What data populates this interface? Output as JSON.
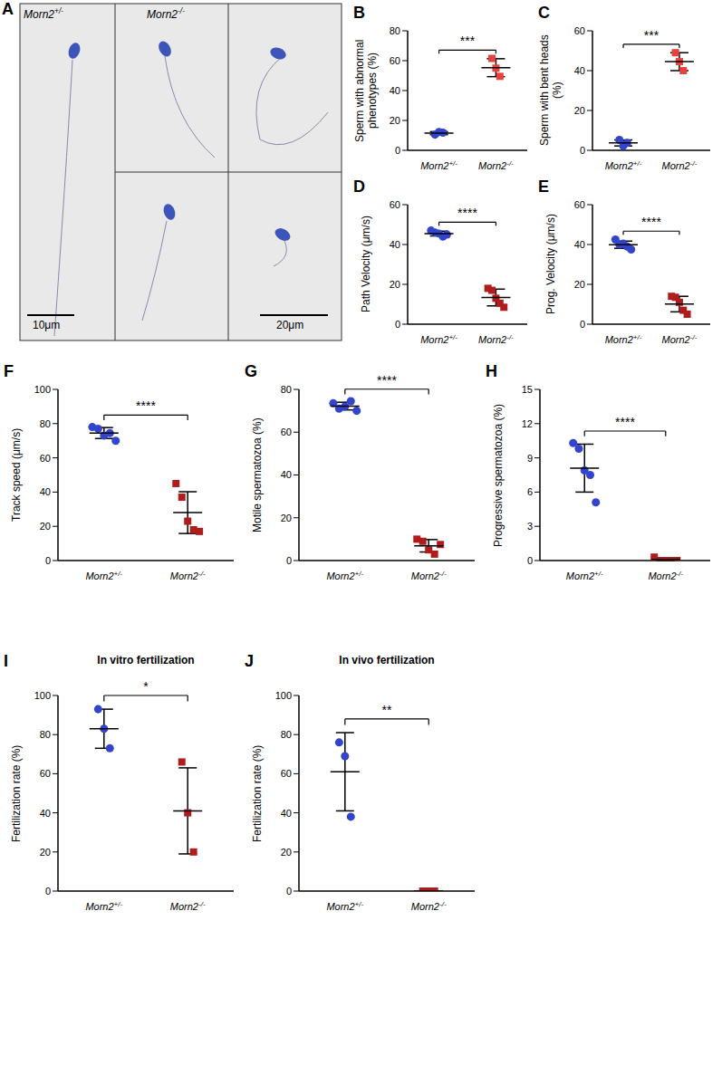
{
  "image_panel": {
    "panel": "A",
    "labels": [
      "Morn2+/-",
      "Morn2-/-"
    ],
    "scale_bars": [
      "10μm",
      "20μm"
    ]
  },
  "chart_data": [
    {
      "type": "scatter",
      "panel": "B",
      "y_label": "Sperm with abnormal phenotypes (%)",
      "categories": [
        "Morn2+/-",
        "Morn2-/-"
      ],
      "groups": [
        {
          "category": "Morn2+/-",
          "color": "#3344cc",
          "marker": "circle",
          "values": [
            10.5,
            12.3,
            11.8
          ],
          "mean": 11.5,
          "sd": 1.0
        },
        {
          "category": "Morn2-/-",
          "color": "#e8413c",
          "marker": "square",
          "values": [
            61.5,
            55,
            49.5
          ],
          "mean": 55.3,
          "sd": 6.0
        }
      ],
      "ylim": [
        0,
        80
      ],
      "yticks": [
        0,
        20,
        40,
        60,
        80
      ],
      "significance": "***",
      "grid": false
    },
    {
      "type": "scatter",
      "panel": "C",
      "y_label": "Sperm with bent heads (%)",
      "categories": [
        "Morn2+/-",
        "Morn2-/-"
      ],
      "groups": [
        {
          "category": "Morn2+/-",
          "color": "#3344cc",
          "marker": "circle",
          "values": [
            5.2,
            2.2,
            3.8
          ],
          "mean": 3.7,
          "sd": 1.5
        },
        {
          "category": "Morn2-/-",
          "color": "#e8413c",
          "marker": "square",
          "values": [
            49,
            44.5,
            40
          ],
          "mean": 44.5,
          "sd": 4.5
        }
      ],
      "ylim": [
        0,
        60
      ],
      "yticks": [
        0,
        20,
        40,
        60
      ],
      "significance": "***",
      "grid": false
    },
    {
      "type": "scatter",
      "panel": "D",
      "y_label": "Path Velocity (μm/s)",
      "categories": [
        "Morn2+/-",
        "Morn2-/-"
      ],
      "groups": [
        {
          "category": "Morn2+/-",
          "color": "#3344cc",
          "marker": "circle",
          "values": [
            47,
            46,
            45.5,
            44,
            45
          ],
          "mean": 45.5,
          "sd": 1.2
        },
        {
          "category": "Morn2-/-",
          "color": "#b01c1c",
          "marker": "square",
          "values": [
            18,
            17,
            13,
            10.5,
            8.5
          ],
          "mean": 13.4,
          "sd": 4.2
        }
      ],
      "ylim": [
        0,
        60
      ],
      "yticks": [
        0,
        20,
        40,
        60
      ],
      "significance": "****",
      "grid": false
    },
    {
      "type": "scatter",
      "panel": "E",
      "y_label": "Prog. Velocity (μm/s)",
      "categories": [
        "Morn2+/-",
        "Morn2-/-"
      ],
      "groups": [
        {
          "category": "Morn2+/-",
          "color": "#3344cc",
          "marker": "circle",
          "values": [
            42.5,
            40,
            40.5,
            39,
            37.5
          ],
          "mean": 39.9,
          "sd": 1.8
        },
        {
          "category": "Morn2-/-",
          "color": "#b01c1c",
          "marker": "square",
          "values": [
            14,
            13.5,
            11,
            7,
            5
          ],
          "mean": 10.1,
          "sd": 3.9
        }
      ],
      "ylim": [
        0,
        60
      ],
      "yticks": [
        0,
        20,
        40,
        60
      ],
      "significance": "****",
      "grid": false
    },
    {
      "type": "scatter",
      "panel": "F",
      "y_label": "Track speed (μm/s)",
      "categories": [
        "Morn2+/-",
        "Morn2-/-"
      ],
      "groups": [
        {
          "category": "Morn2+/-",
          "color": "#3344cc",
          "marker": "circle",
          "values": [
            78,
            77,
            73,
            74.5,
            70
          ],
          "mean": 74.5,
          "sd": 3.2
        },
        {
          "category": "Morn2-/-",
          "color": "#b01c1c",
          "marker": "square",
          "values": [
            45,
            37,
            23,
            18,
            17
          ],
          "mean": 28,
          "sd": 12.2
        }
      ],
      "ylim": [
        0,
        100
      ],
      "yticks": [
        0,
        20,
        40,
        60,
        80,
        100
      ],
      "significance": "****",
      "grid": false
    },
    {
      "type": "scatter",
      "panel": "G",
      "y_label": "Motile spermatozoa (%)",
      "categories": [
        "Morn2+/-",
        "Morn2-/-"
      ],
      "groups": [
        {
          "category": "Morn2+/-",
          "color": "#3344cc",
          "marker": "circle",
          "values": [
            73.5,
            71,
            72,
            74.5,
            70
          ],
          "mean": 72.2,
          "sd": 1.8
        },
        {
          "category": "Morn2-/-",
          "color": "#b01c1c",
          "marker": "square",
          "values": [
            10,
            9,
            5,
            3,
            7.5
          ],
          "mean": 6.9,
          "sd": 2.9
        }
      ],
      "ylim": [
        0,
        80
      ],
      "yticks": [
        0,
        20,
        40,
        60,
        80
      ],
      "significance": "****",
      "grid": false
    },
    {
      "type": "scatter",
      "panel": "H",
      "y_label": "Progressive spermatozoa (%)",
      "categories": [
        "Morn2+/-",
        "Morn2-/-"
      ],
      "groups": [
        {
          "category": "Morn2+/-",
          "color": "#3344cc",
          "marker": "circle",
          "values": [
            10.3,
            9.8,
            7.9,
            7.5,
            5.1
          ],
          "mean": 8.1,
          "sd": 2.1
        },
        {
          "category": "Morn2-/-",
          "color": "#b01c1c",
          "marker": "square",
          "values": [
            0.3,
            0,
            0,
            0,
            0
          ],
          "mean": 0.1,
          "sd": 0.1
        }
      ],
      "ylim": [
        0,
        15
      ],
      "yticks": [
        0,
        3,
        6,
        9,
        12,
        15
      ],
      "significance": "****",
      "grid": false
    },
    {
      "type": "scatter",
      "panel": "I",
      "title": "In vitro fertilization",
      "y_label": "Fertilization rate (%)",
      "categories": [
        "Morn2+/-",
        "Morn2-/-"
      ],
      "groups": [
        {
          "category": "Morn2+/-",
          "color": "#3344cc",
          "marker": "circle",
          "values": [
            93,
            83,
            73
          ],
          "mean": 83,
          "sd": 10
        },
        {
          "category": "Morn2-/-",
          "color": "#b01c1c",
          "marker": "square",
          "values": [
            66,
            40,
            20
          ],
          "mean": 41,
          "sd": 22
        }
      ],
      "ylim": [
        0,
        100
      ],
      "yticks": [
        0,
        20,
        40,
        60,
        80,
        100
      ],
      "significance": "*",
      "grid": false
    },
    {
      "type": "scatter",
      "panel": "J",
      "title": "In vivo fertilization",
      "y_label": "Fertilization rate (%)",
      "categories": [
        "Morn2+/-",
        "Morn2-/-"
      ],
      "groups": [
        {
          "category": "Morn2+/-",
          "color": "#3344cc",
          "marker": "circle",
          "values": [
            76,
            69,
            38
          ],
          "mean": 61,
          "sd": 20
        },
        {
          "category": "Morn2-/-",
          "color": "#b01c1c",
          "marker": "square",
          "values": [
            0,
            0,
            0
          ],
          "mean": 0,
          "sd": 0
        }
      ],
      "ylim": [
        0,
        100
      ],
      "yticks": [
        0,
        20,
        40,
        60,
        80,
        100
      ],
      "significance": "**",
      "grid": false
    }
  ]
}
